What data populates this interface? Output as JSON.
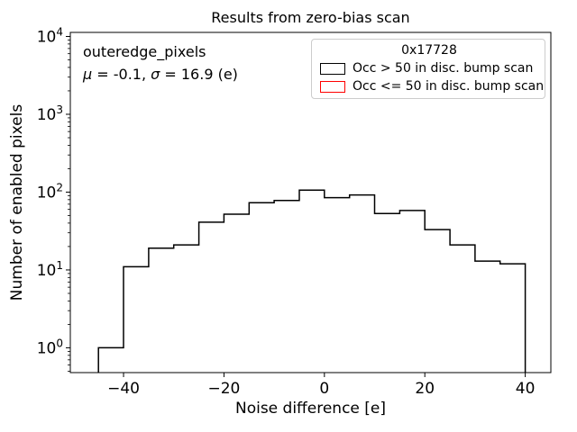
{
  "figure": {
    "title": "Results from zero-bias scan",
    "xlabel": "Noise difference [e]",
    "ylabel": "Number of enabled pixels"
  },
  "annotation": {
    "dataset": "outeredge_pixels",
    "mu_symbol": "μ",
    "mu_value": " = -0.1, ",
    "sigma_symbol": "σ",
    "sigma_value": " = 16.9 (e)"
  },
  "legend": {
    "title": "0x17728",
    "entries": [
      {
        "label": "Occ > 50 in disc. bump scan",
        "color": "#000000"
      },
      {
        "label": "Occ <= 50 in disc. bump scan",
        "color": "#ff0000"
      }
    ]
  },
  "chart_data": {
    "type": "histogram",
    "title": "Results from zero-bias scan",
    "xlabel": "Noise difference [e]",
    "ylabel": "Number of enabled pixels",
    "grid": false,
    "legend_position": "upper right",
    "x_axis": {
      "min": -50.6,
      "max": 45.1,
      "ticks": [
        -40,
        -20,
        0,
        20,
        40
      ],
      "tick_labels": [
        "−40",
        "−20",
        "0",
        "20",
        "40"
      ]
    },
    "y_axis": {
      "scale": "log",
      "min": 0.48,
      "max": 11270,
      "tick_base": "10",
      "tick_exponents": [
        0,
        1,
        2,
        3,
        4
      ]
    },
    "bin_edges": [
      -45,
      -40,
      -35,
      -30,
      -25,
      -20,
      -15,
      -10,
      -5,
      0,
      5,
      10,
      15,
      20,
      25,
      30,
      35,
      40
    ],
    "series": [
      {
        "name": "Occ > 50 in disc. bump scan",
        "color": "#000000",
        "counts": [
          1,
          11,
          19,
          21,
          41,
          52,
          73,
          78,
          106,
          85,
          92,
          53,
          58,
          33,
          21,
          13,
          12
        ]
      }
    ],
    "stats": {
      "mu": -0.1,
      "sigma": 16.9
    }
  }
}
